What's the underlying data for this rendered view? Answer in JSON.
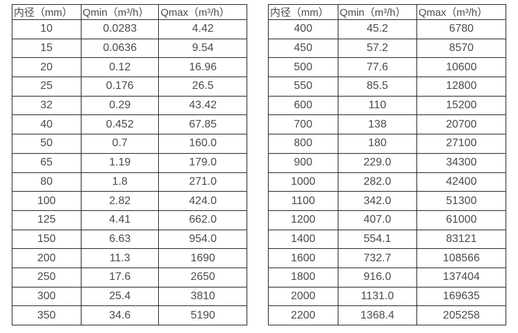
{
  "page": {
    "background_color": "#ffffff",
    "text_color": "#4a4a4a",
    "border_color": "#262626"
  },
  "tables": [
    {
      "id": "left",
      "headers": [
        "内径（mm）",
        "Qmin（m³/h）",
        "Qmax（m³/h）"
      ],
      "rows": [
        [
          "10",
          "0.0283",
          "4.42"
        ],
        [
          "15",
          "0.0636",
          "9.54"
        ],
        [
          "20",
          "0.12",
          "16.96"
        ],
        [
          "25",
          "0.176",
          "26.5"
        ],
        [
          "32",
          "0.29",
          "43.42"
        ],
        [
          "40",
          "0.452",
          "67.85"
        ],
        [
          "50",
          "0.7",
          "160.0"
        ],
        [
          "65",
          "1.19",
          "179.0"
        ],
        [
          "80",
          "1.8",
          "271.0"
        ],
        [
          "100",
          "2.82",
          "424.0"
        ],
        [
          "125",
          "4.41",
          "662.0"
        ],
        [
          "150",
          "6.63",
          "954.0"
        ],
        [
          "200",
          "11.3",
          "1690"
        ],
        [
          "250",
          "17.6",
          "2650"
        ],
        [
          "300",
          "25.4",
          "3810"
        ],
        [
          "350",
          "34.6",
          "5190"
        ]
      ]
    },
    {
      "id": "right",
      "headers": [
        "内径（mm）",
        "Qmin（m³/h）",
        "Qmax（m³/h）"
      ],
      "rows": [
        [
          "400",
          "45.2",
          "6780"
        ],
        [
          "450",
          "57.2",
          "8570"
        ],
        [
          "500",
          "77.6",
          "10600"
        ],
        [
          "550",
          "85.5",
          "12800"
        ],
        [
          "600",
          "110",
          "15200"
        ],
        [
          "700",
          "138",
          "20700"
        ],
        [
          "800",
          "180",
          "27100"
        ],
        [
          "900",
          "229.0",
          "34300"
        ],
        [
          "1000",
          "282.0",
          "42400"
        ],
        [
          "1100",
          "342.0",
          "51300"
        ],
        [
          "1200",
          "407.0",
          "61000"
        ],
        [
          "1400",
          "554.1",
          "83121"
        ],
        [
          "1600",
          "732.7",
          "108566"
        ],
        [
          "1800",
          "916.0",
          "137404"
        ],
        [
          "2000",
          "1131.0",
          "169635"
        ],
        [
          "2200",
          "1368.4",
          "205258"
        ]
      ]
    }
  ]
}
